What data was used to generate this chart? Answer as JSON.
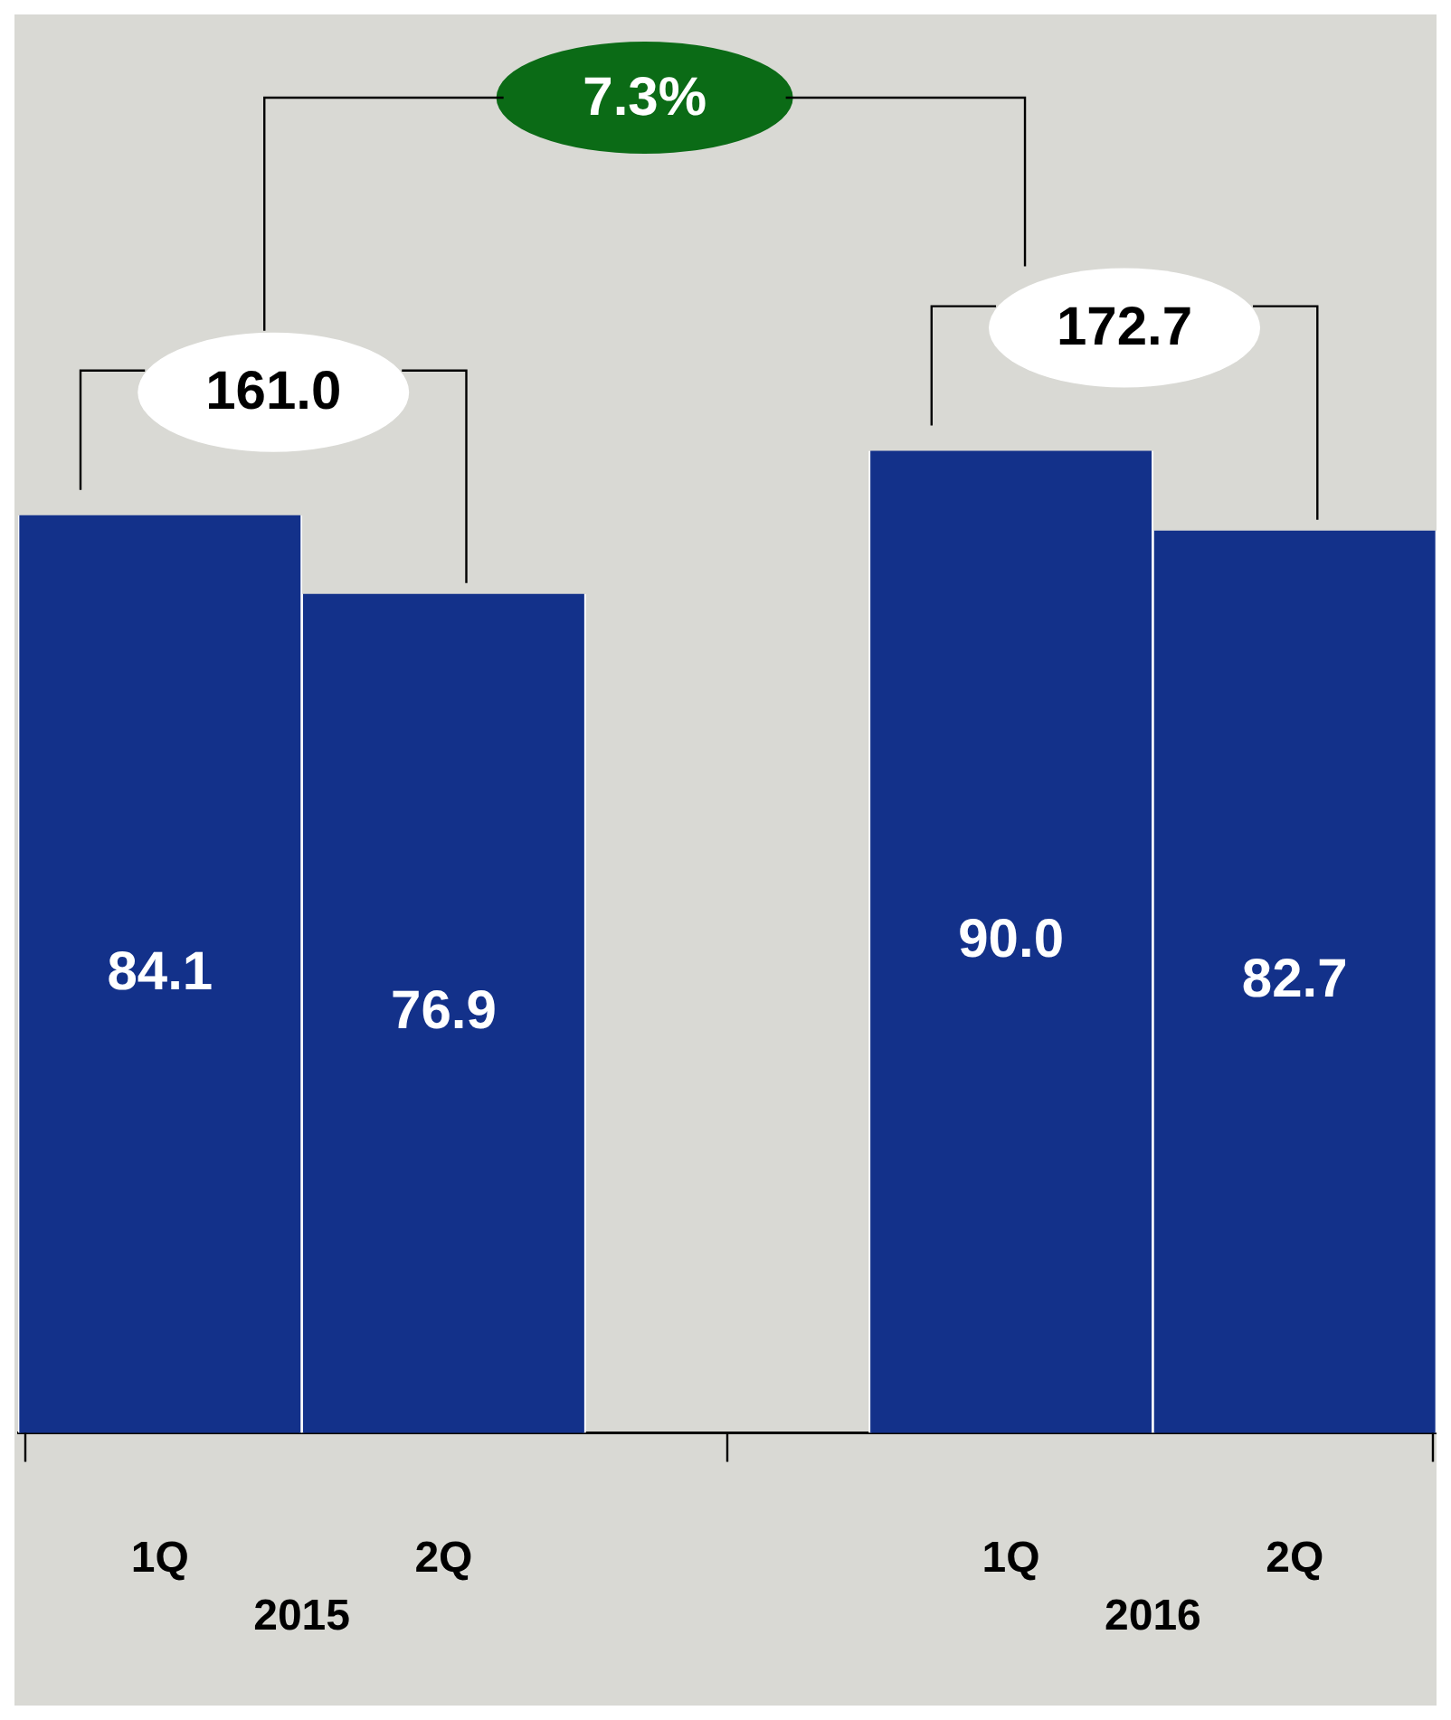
{
  "chart_data": {
    "type": "bar",
    "categories": [
      "1Q",
      "2Q",
      null,
      "1Q",
      "2Q"
    ],
    "values": [
      84.1,
      76.9,
      null,
      90.0,
      82.7
    ],
    "value_labels": [
      "84.1",
      "76.9",
      null,
      "90.0",
      "82.7"
    ],
    "color": "#13318a",
    "ylim": [
      0,
      130
    ],
    "grid": false,
    "legend": false,
    "tick_labels": "x",
    "annotations": [
      "161.0",
      "172.7",
      "7.3%",
      "2015",
      "2016"
    ]
  }
}
